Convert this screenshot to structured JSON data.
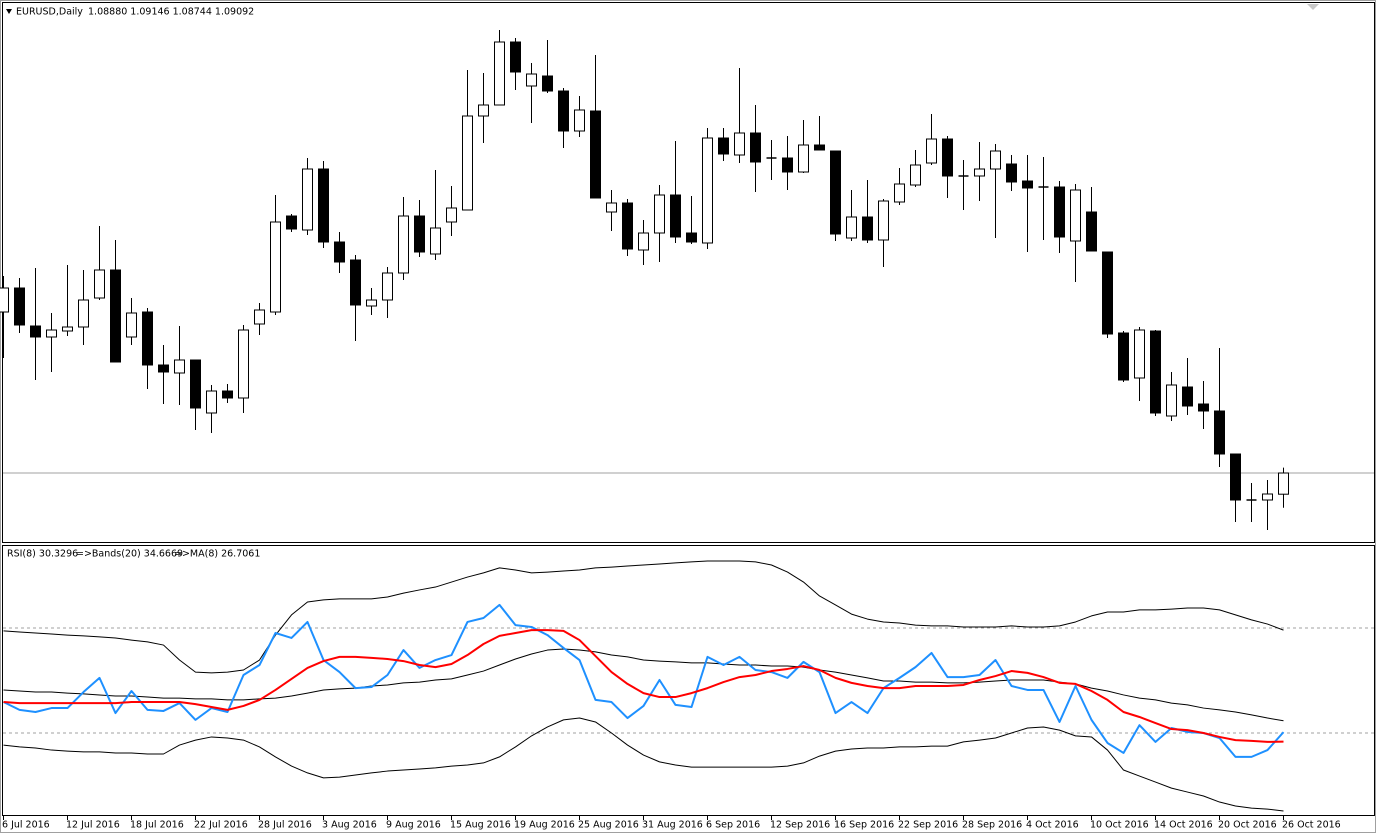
{
  "chart_data": [
    {
      "type": "candlestick",
      "title": "EURUSD,Daily",
      "quote": "1.08880 1.09146 1.08744 1.09092",
      "up_color": "#ffffff",
      "down_color": "#000000",
      "ylim": [
        1.08422,
        1.13772
      ],
      "categories": [
        "6 Jul 2016",
        null,
        null,
        null,
        "12 Jul 2016",
        null,
        null,
        null,
        "18 Jul 2016",
        null,
        null,
        null,
        "22 Jul 2016",
        null,
        null,
        null,
        "28 Jul 2016",
        null,
        null,
        null,
        "3 Aug 2016",
        null,
        null,
        null,
        "9 Aug 2016",
        null,
        null,
        null,
        "15 Aug 2016",
        null,
        null,
        null,
        "19 Aug 2016",
        null,
        null,
        null,
        "25 Aug 2016",
        null,
        null,
        null,
        "31 Aug 2016",
        null,
        null,
        null,
        "6 Sep 2016",
        null,
        null,
        null,
        "12 Sep 2016",
        null,
        null,
        null,
        "16 Sep 2016",
        null,
        null,
        null,
        "22 Sep 2016",
        null,
        null,
        null,
        "28 Sep 2016",
        null,
        null,
        null,
        "4 Oct 2016",
        null,
        null,
        null,
        "10 Oct 2016",
        null,
        null,
        null,
        "14 Oct 2016",
        null,
        null,
        null,
        "20 Oct 2016",
        null,
        null,
        null,
        "26 Oct 2016"
      ],
      "open": [
        1.10702,
        1.10942,
        1.10562,
        1.10452,
        1.10512,
        1.10552,
        1.10842,
        1.11122,
        1.10452,
        1.10702,
        1.10172,
        1.10092,
        1.10222,
        1.09692,
        1.09912,
        1.09842,
        1.10582,
        1.10702,
        1.11662,
        1.11522,
        1.12132,
        1.11402,
        1.11222,
        1.10762,
        1.10822,
        1.11092,
        1.11662,
        1.11282,
        1.11602,
        1.11722,
        1.12662,
        1.12772,
        1.13402,
        1.12962,
        1.13062,
        1.12912,
        1.12512,
        1.12712,
        1.11702,
        1.11792,
        1.11322,
        1.11492,
        1.11872,
        1.11492,
        1.11392,
        1.12442,
        1.12272,
        1.12492,
        1.12242,
        1.12242,
        1.12102,
        1.12372,
        1.12312,
        1.11442,
        1.11652,
        1.11422,
        1.11802,
        1.11972,
        1.12192,
        1.12432,
        1.12062,
        1.12062,
        1.12132,
        1.12182,
        1.12012,
        1.11952,
        1.11952,
        1.11412,
        1.11702,
        1.11302,
        1.10492,
        1.10042,
        1.10512,
        1.09662,
        1.09952,
        1.09782,
        1.09712,
        1.09282,
        1.08822,
        1.08822,
        1.0888
      ],
      "high": [
        1.11062,
        1.11042,
        1.11142,
        1.10692,
        1.11172,
        1.11122,
        1.11562,
        1.11422,
        1.10842,
        1.10742,
        1.10372,
        1.10562,
        1.10222,
        1.09972,
        1.09982,
        1.10572,
        1.10792,
        1.11872,
        1.11682,
        1.12242,
        1.12212,
        1.11502,
        1.11272,
        1.10942,
        1.11152,
        1.11852,
        1.11822,
        1.12122,
        1.11962,
        1.13122,
        1.13092,
        1.13522,
        1.13442,
        1.13192,
        1.13422,
        1.12942,
        1.12862,
        1.13272,
        1.11922,
        1.11832,
        1.11622,
        1.11972,
        1.12412,
        1.11862,
        1.12542,
        1.12542,
        1.13142,
        1.12772,
        1.12422,
        1.12462,
        1.12622,
        1.12662,
        1.12312,
        1.11922,
        1.12022,
        1.11832,
        1.12142,
        1.12322,
        1.12682,
        1.12462,
        1.12222,
        1.12402,
        1.12382,
        1.12272,
        1.12272,
        1.12252,
        1.12012,
        1.11982,
        1.11952,
        1.11302,
        1.10512,
        1.10552,
        1.10522,
        1.10102,
        1.10242,
        1.10012,
        1.10342,
        1.09282,
        1.08992,
        1.09022,
        1.09146
      ],
      "low": [
        1.10242,
        1.10492,
        1.10022,
        1.10102,
        1.10462,
        1.10372,
        1.10822,
        1.10202,
        1.10372,
        1.09932,
        1.09782,
        1.09772,
        1.09522,
        1.09492,
        1.09792,
        1.09692,
        1.10472,
        1.10672,
        1.11502,
        1.11472,
        1.11342,
        1.11092,
        1.10412,
        1.10672,
        1.10642,
        1.11022,
        1.11252,
        1.11222,
        1.11462,
        1.11722,
        1.12392,
        1.12772,
        1.12922,
        1.12592,
        1.12892,
        1.12342,
        1.12452,
        1.11842,
        1.11512,
        1.11262,
        1.11172,
        1.11202,
        1.11392,
        1.11382,
        1.11332,
        1.12212,
        1.12192,
        1.11902,
        1.12022,
        1.11922,
        1.12092,
        1.12322,
        1.11412,
        1.11412,
        1.11392,
        1.11152,
        1.11772,
        1.11952,
        1.12172,
        1.11842,
        1.11722,
        1.11812,
        1.11442,
        1.11912,
        1.11302,
        1.11422,
        1.11292,
        1.11002,
        1.11312,
        1.10442,
        1.10002,
        1.09812,
        1.09662,
        1.09612,
        1.09672,
        1.09532,
        1.09152,
        1.08602,
        1.08602,
        1.08522,
        1.08744
      ],
      "close": [
        1.10942,
        1.10572,
        1.10452,
        1.10522,
        1.10552,
        1.10822,
        1.11122,
        1.10202,
        1.10692,
        1.10172,
        1.10102,
        1.10222,
        1.09742,
        1.09912,
        1.09842,
        1.10522,
        1.10722,
        1.11602,
        1.11532,
        1.12132,
        1.11402,
        1.11202,
        1.10772,
        1.10822,
        1.11092,
        1.11662,
        1.11302,
        1.11542,
        1.11742,
        1.12662,
        1.12772,
        1.13402,
        1.13102,
        1.13082,
        1.12912,
        1.12512,
        1.12722,
        1.11842,
        1.11792,
        1.11332,
        1.11492,
        1.11872,
        1.11452,
        1.11402,
        1.12442,
        1.12282,
        1.12492,
        1.12202,
        1.12242,
        1.12102,
        1.12372,
        1.12322,
        1.11482,
        1.11652,
        1.11422,
        1.11812,
        1.11982,
        1.12172,
        1.12432,
        1.12062,
        1.12062,
        1.12132,
        1.12312,
        1.12002,
        1.11942,
        1.11952,
        1.11452,
        1.11922,
        1.11312,
        1.10482,
        1.10022,
        1.10522,
        1.09692,
        1.09972,
        1.09762,
        1.09712,
        1.09282,
        1.08822,
        1.08822,
        1.08882,
        1.09092
      ]
    },
    {
      "type": "line",
      "labels": [
        "RSI(8) 30.3296",
        "=>Bands(20) 34.6669",
        "=>MA(8) 26.7061"
      ],
      "ylim": [
        0,
        100
      ],
      "levels": [
        70,
        30
      ],
      "level_color": "#a0a0a0",
      "categories": [
        "6 Jul 2016",
        null,
        null,
        null,
        "12 Jul 2016",
        null,
        null,
        null,
        "18 Jul 2016",
        null,
        null,
        null,
        "22 Jul 2016",
        null,
        null,
        null,
        "28 Jul 2016",
        null,
        null,
        null,
        "3 Aug 2016",
        null,
        null,
        null,
        "9 Aug 2016",
        null,
        null,
        null,
        "15 Aug 2016",
        null,
        null,
        null,
        "19 Aug 2016",
        null,
        null,
        null,
        "25 Aug 2016",
        null,
        null,
        null,
        "31 Aug 2016",
        null,
        null,
        null,
        "6 Sep 2016",
        null,
        null,
        null,
        "12 Sep 2016",
        null,
        null,
        null,
        "16 Sep 2016",
        null,
        null,
        null,
        "22 Sep 2016",
        null,
        null,
        null,
        "28 Sep 2016",
        null,
        null,
        null,
        "4 Oct 2016",
        null,
        null,
        null,
        "10 Oct 2016",
        null,
        null,
        null,
        "14 Oct 2016",
        null,
        null,
        null,
        "20 Oct 2016",
        null,
        null,
        null,
        "26 Oct 2016"
      ],
      "series": [
        {
          "color": "#000000",
          "width": 1,
          "values": [
            68.9,
            68.5,
            68.1,
            67.7,
            67.3,
            67.0,
            66.6,
            66.2,
            65.4,
            64.7,
            63.5,
            57.8,
            53.2,
            52.9,
            53.2,
            54.0,
            57.8,
            67.3,
            75.0,
            79.9,
            80.7,
            81.1,
            81.1,
            81.1,
            81.8,
            83.3,
            84.5,
            85.6,
            87.5,
            89.4,
            91.0,
            92.9,
            92.1,
            91.0,
            91.3,
            91.7,
            92.1,
            92.9,
            93.2,
            93.6,
            94.0,
            94.4,
            94.8,
            95.2,
            95.5,
            95.5,
            95.5,
            95.2,
            94.0,
            91.3,
            87.5,
            82.2,
            78.8,
            75.3,
            73.4,
            72.3,
            71.9,
            71.1,
            70.8,
            70.8,
            70.4,
            70.4,
            70.4,
            70.8,
            70.4,
            70.4,
            70.8,
            72.3,
            74.6,
            76.1,
            76.1,
            76.9,
            76.9,
            77.2,
            77.6,
            77.6,
            76.9,
            75.0,
            73.1,
            71.5,
            69.2
          ]
        },
        {
          "color": "#000000",
          "width": 1,
          "values": [
            46.4,
            46.0,
            45.6,
            45.6,
            45.2,
            44.9,
            44.5,
            44.1,
            44.1,
            43.7,
            43.3,
            43.3,
            43.0,
            43.0,
            42.6,
            42.6,
            43.0,
            43.3,
            44.1,
            45.2,
            46.4,
            46.8,
            47.1,
            47.9,
            48.3,
            49.1,
            49.4,
            50.2,
            50.6,
            52.1,
            53.6,
            55.9,
            58.2,
            60.1,
            61.6,
            62.0,
            61.6,
            60.9,
            59.7,
            59.0,
            57.8,
            57.4,
            57.1,
            56.7,
            56.7,
            56.3,
            55.9,
            55.9,
            55.5,
            55.5,
            55.1,
            54.0,
            53.2,
            52.1,
            51.0,
            49.8,
            49.8,
            49.4,
            49.4,
            49.1,
            49.1,
            49.4,
            49.8,
            50.2,
            50.2,
            50.2,
            49.4,
            48.7,
            47.1,
            46.0,
            44.5,
            43.3,
            42.6,
            41.4,
            40.7,
            39.5,
            38.8,
            38.0,
            36.9,
            35.7,
            34.6669
          ]
        },
        {
          "color": "#000000",
          "width": 1,
          "values": [
            25.4,
            24.7,
            24.3,
            23.5,
            23.1,
            22.8,
            22.8,
            22.4,
            22.4,
            22.0,
            22.0,
            25.4,
            27.3,
            28.5,
            28.1,
            27.3,
            24.7,
            20.9,
            17.4,
            14.8,
            12.9,
            13.2,
            14.0,
            14.8,
            15.5,
            15.9,
            16.3,
            16.7,
            17.4,
            17.8,
            18.6,
            20.9,
            24.7,
            28.9,
            32.3,
            35.0,
            35.7,
            34.2,
            30.0,
            25.4,
            21.6,
            19.0,
            17.8,
            17.0,
            17.0,
            17.0,
            17.0,
            17.0,
            17.0,
            17.4,
            18.6,
            21.2,
            23.1,
            23.9,
            24.3,
            24.3,
            24.7,
            24.7,
            25.0,
            25.0,
            26.6,
            27.3,
            28.1,
            30.0,
            31.9,
            32.3,
            31.1,
            28.9,
            28.5,
            23.5,
            15.9,
            13.6,
            11.3,
            9.0,
            7.5,
            6.0,
            3.7,
            2.2,
            1.4,
            1.0,
            0.3
          ]
        },
        {
          "color": "#1e90ff",
          "width": 2,
          "values": [
            41.8,
            38.8,
            38.0,
            39.5,
            39.5,
            45.6,
            51.0,
            37.6,
            46.0,
            38.8,
            38.4,
            41.4,
            35.0,
            39.5,
            38.0,
            52.1,
            55.9,
            68.1,
            66.2,
            72.3,
            57.8,
            53.2,
            47.1,
            47.5,
            52.1,
            61.6,
            54.8,
            57.8,
            59.7,
            72.3,
            73.8,
            78.8,
            71.1,
            70.4,
            67.3,
            62.4,
            57.8,
            42.6,
            41.8,
            35.7,
            40.3,
            50.2,
            40.7,
            39.9,
            59.0,
            55.9,
            59.0,
            54.0,
            53.2,
            51.0,
            57.1,
            53.2,
            37.6,
            41.8,
            37.6,
            47.1,
            51.0,
            55.1,
            60.5,
            51.3,
            51.3,
            52.1,
            57.8,
            47.9,
            46.4,
            46.4,
            34.2,
            47.9,
            35.0,
            26.2,
            22.4,
            33.0,
            26.6,
            31.9,
            30.4,
            30.0,
            28.1,
            20.9,
            20.9,
            23.5,
            30.3296
          ]
        },
        {
          "color": "#ff0000",
          "width": 2,
          "values": [
            41.8,
            41.4,
            41.4,
            41.4,
            41.4,
            41.4,
            41.4,
            41.4,
            41.8,
            41.8,
            41.8,
            41.8,
            41.0,
            39.9,
            38.8,
            40.3,
            42.6,
            46.4,
            50.6,
            54.8,
            57.4,
            59.0,
            59.0,
            58.6,
            58.2,
            57.4,
            55.9,
            55.1,
            56.3,
            59.7,
            63.9,
            67.0,
            68.1,
            69.2,
            69.2,
            68.9,
            65.4,
            59.3,
            53.2,
            48.7,
            45.2,
            43.7,
            43.7,
            45.2,
            47.1,
            49.4,
            51.3,
            52.1,
            53.6,
            54.4,
            55.5,
            54.0,
            51.0,
            49.1,
            47.9,
            47.1,
            47.1,
            47.9,
            47.9,
            47.9,
            48.3,
            50.2,
            51.7,
            53.6,
            52.9,
            51.3,
            49.1,
            48.7,
            46.0,
            42.6,
            38.0,
            36.1,
            33.8,
            31.5,
            31.1,
            30.0,
            28.5,
            27.3,
            27.0,
            26.6,
            26.7061
          ]
        }
      ]
    }
  ]
}
